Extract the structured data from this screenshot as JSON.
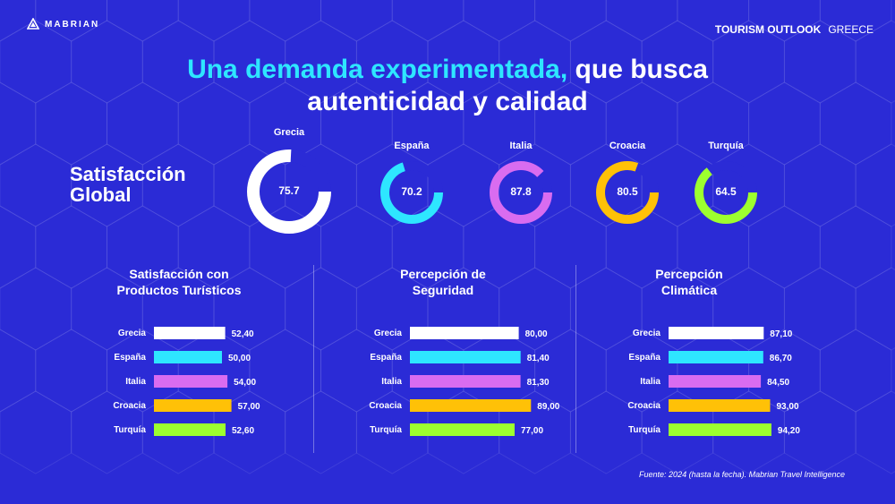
{
  "brand": "MABRIAN",
  "header": {
    "label_bold": "TOURISM OUTLOOK",
    "label_light": "GREECE"
  },
  "title": {
    "accent": "Una demanda experimentada,",
    "rest1": " que busca",
    "line2": "autenticidad y calidad"
  },
  "satisfaction_label": {
    "line1": "Satisfacción",
    "line2": "Global"
  },
  "colors": {
    "Grecia": "#ffffff",
    "España": "#2ee6ff",
    "Italia": "#d96cf0",
    "Croacia": "#ffc107",
    "Turquía": "#9dff2f",
    "track": "#2b2bd6"
  },
  "chart_data": [
    {
      "type": "pie",
      "title": "Satisfacción Global",
      "categories": [
        "Grecia",
        "España",
        "Italia",
        "Croacia",
        "Turquía"
      ],
      "values": [
        75.7,
        70.2,
        87.8,
        80.5,
        64.5
      ],
      "value_labels": [
        "75.7",
        "70.2",
        "87.8",
        "80.5",
        "64.5"
      ],
      "max": 100
    },
    {
      "type": "bar",
      "title_line1": "Satisfacción con",
      "title_line2": "Productos Turísticos",
      "categories": [
        "Grecia",
        "España",
        "Italia",
        "Croacia",
        "Turquía"
      ],
      "values": [
        52.4,
        50.0,
        54.0,
        57.0,
        52.6
      ],
      "value_labels": [
        "52,40",
        "50,00",
        "54,00",
        "57,00",
        "52,60"
      ]
    },
    {
      "type": "bar",
      "title_line1": "Percepción de",
      "title_line2": "Seguridad",
      "categories": [
        "Grecia",
        "España",
        "Italia",
        "Croacia",
        "Turquía"
      ],
      "values": [
        80.0,
        81.4,
        81.3,
        89.0,
        77.0
      ],
      "value_labels": [
        "80,00",
        "81,40",
        "81,30",
        "89,00",
        "77,00"
      ]
    },
    {
      "type": "bar",
      "title_line1": "Percepción",
      "title_line2": "Climática",
      "categories": [
        "Grecia",
        "España",
        "Italia",
        "Croacia",
        "Turquía"
      ],
      "values": [
        87.1,
        86.7,
        84.5,
        93.0,
        94.2
      ],
      "value_labels": [
        "87,10",
        "86,70",
        "84,50",
        "93,00",
        "94,20"
      ]
    }
  ],
  "source": "Fuente: 2024 (hasta la fecha). Mabrian Travel Intelligence"
}
